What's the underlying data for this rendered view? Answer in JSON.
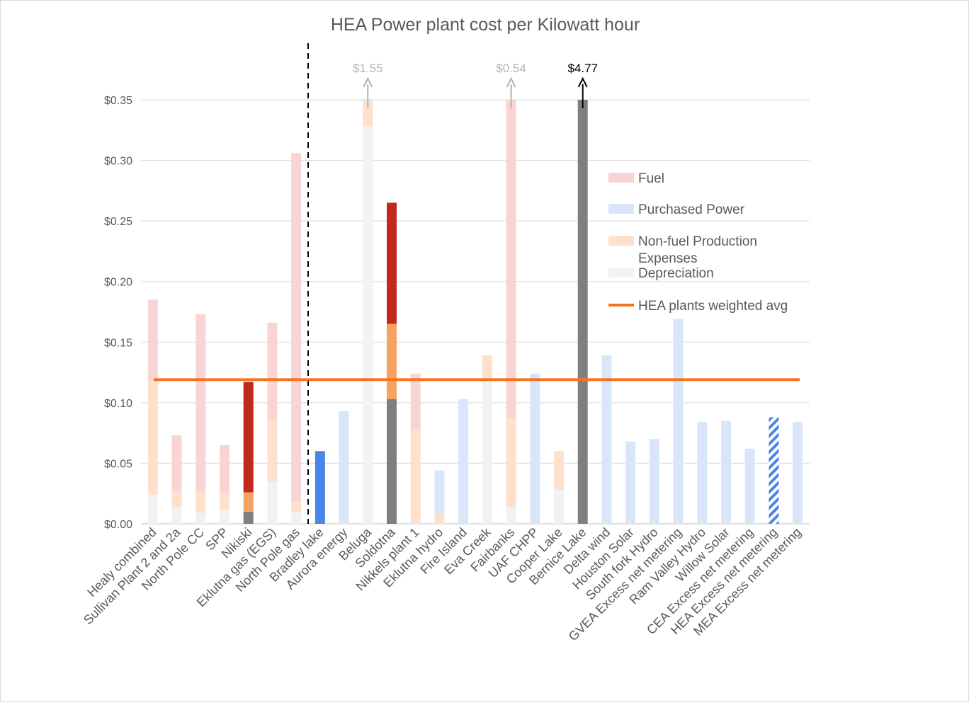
{
  "chart_data": {
    "type": "bar",
    "stacked": true,
    "title": "HEA Power plant cost per Kilowatt hour",
    "xlabel": "",
    "ylabel": "",
    "ylim": [
      0,
      0.35
    ],
    "yticks": [
      0,
      0.05,
      0.1,
      0.15,
      0.2,
      0.25,
      0.3,
      0.35
    ],
    "ytick_labels": [
      "$0.00",
      "$0.05",
      "$0.10",
      "$0.15",
      "$0.20",
      "$0.25",
      "$0.30",
      "$0.35"
    ],
    "gridlines": true,
    "categories": [
      "Healy combined",
      "Sullivan Plant 2 and 2a",
      "North Pole CC",
      "SPP",
      "Nikiski",
      "Eklutna gas (EGS)",
      "North Pole gas",
      "Bradley lake",
      "Aurora energy",
      "Beluga",
      "Soldotna",
      "Nikkels plant 1",
      "Eklutna hydro",
      "Fire Island",
      "Eva Creek",
      "Fairbanks",
      "UAF CHPP",
      "Cooper Lake",
      "Bernice Lake",
      "Delta wind",
      "Houston Solar",
      "South fork Hydro",
      "GVEA Excess net metering",
      "Ram Valley Hydro",
      "Willow Solar",
      "CEA Excess net metering",
      "HEA Excess net metering",
      "MEA Excess net metering"
    ],
    "series": [
      {
        "name": "Depreciation",
        "color": "#f2f2f2",
        "values": [
          0.024,
          0.014,
          0.009,
          0.012,
          0.01,
          0.035,
          0.009,
          0,
          0,
          0.328,
          0.103,
          0,
          0,
          0,
          0.118,
          0.014,
          0,
          0.028,
          0.35,
          0,
          0,
          0,
          0,
          0,
          0,
          0,
          0,
          0
        ]
      },
      {
        "name": "Non-fuel Production Expenses",
        "color": "#fde1cc",
        "values": [
          0.094,
          0.013,
          0.018,
          0.014,
          0.016,
          0.051,
          0.009,
          0,
          0,
          0.022,
          0.062,
          0.078,
          0.008,
          0,
          0.021,
          0.073,
          0,
          0.032,
          0,
          0,
          0,
          0,
          0,
          0,
          0,
          0,
          0,
          0
        ]
      },
      {
        "name": "Fuel",
        "color": "#f9d4d4",
        "values": [
          0.067,
          0.046,
          0.146,
          0.039,
          0.091,
          0.08,
          0.288,
          0,
          0,
          0,
          0.1,
          0.046,
          0,
          0,
          0,
          0.263,
          0,
          0,
          0,
          0,
          0,
          0,
          0,
          0,
          0,
          0,
          0,
          0
        ]
      },
      {
        "name": "Purchased Power",
        "color": "#d9e6fa",
        "values": [
          0,
          0,
          0,
          0,
          0,
          0,
          0,
          0.06,
          0.093,
          0,
          0,
          0,
          0.036,
          0.103,
          0,
          0,
          0.124,
          0,
          0,
          0.139,
          0.068,
          0.07,
          0.169,
          0.084,
          0.085,
          0.062,
          0.088,
          0.084
        ]
      }
    ],
    "highlighted_bar_colors": {
      "Nikiski": {
        "Depreciation": "#7f7f7f",
        "Non-fuel Production Expenses": "#f7a162",
        "Fuel": "#c0291c"
      },
      "Soldotna": {
        "Depreciation": "#7f7f7f",
        "Non-fuel Production Expenses": "#f7a162",
        "Fuel": "#c0291c"
      },
      "Bernice Lake": {
        "Depreciation": "#7f7f7f"
      },
      "Bradley lake": {
        "Purchased Power": "#4a86e8"
      },
      "HEA Excess net metering": {
        "Purchased Power": "hatched #4a86e8"
      }
    },
    "reference_line": {
      "name": "HEA plants weighted avg",
      "value": 0.119,
      "color": "#f4731b"
    },
    "divider_after_category": "North Pole gas",
    "overflow_annotations": [
      {
        "category": "Beluga",
        "label": "$1.55",
        "color": "#b3b3b3"
      },
      {
        "category": "Fairbanks",
        "label": "$0.54",
        "color": "#b3b3b3"
      },
      {
        "category": "Bernice Lake",
        "label": "$4.77",
        "color": "#000000"
      }
    ],
    "legend": {
      "position": "right",
      "items": [
        {
          "label": "Fuel",
          "color": "#f9d4d4",
          "kind": "box"
        },
        {
          "label": " Purchased Power",
          "color": "#d9e6fa",
          "kind": "box"
        },
        {
          "label": "Non-fuel Production",
          "label2": "Expenses",
          "color": "#fde1cc",
          "kind": "box"
        },
        {
          "label": "Depreciation",
          "color": "#f2f2f2",
          "kind": "box"
        },
        {
          "label": "HEA plants weighted avg",
          "color": "#f4731b",
          "kind": "line"
        }
      ]
    }
  }
}
